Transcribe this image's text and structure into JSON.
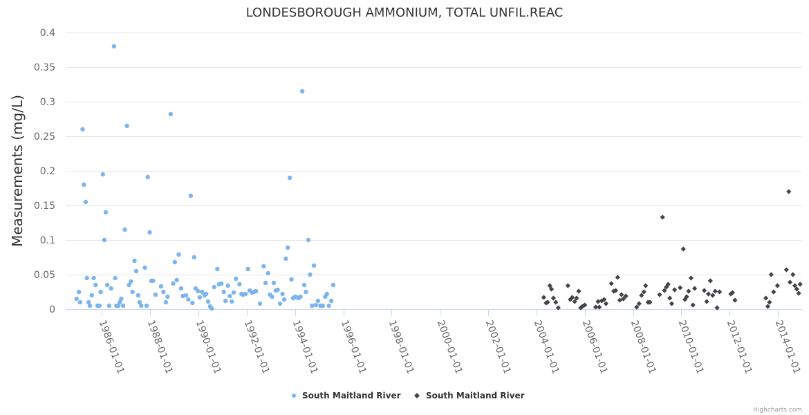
{
  "credits": "Highcharts.com",
  "chart_data": {
    "type": "scatter",
    "title": "LONDESBOROUGH AMMONIUM, TOTAL UNFIL.REAC",
    "xlabel": "",
    "ylabel": "Measurements (mg/L)",
    "ylim": [
      0,
      0.4
    ],
    "xlim": [
      1984.5,
      2015.0
    ],
    "yticks": [
      0,
      0.05,
      0.1,
      0.15,
      0.2,
      0.25,
      0.3,
      0.35,
      0.4
    ],
    "ytick_labels": [
      "0",
      "0.05",
      "0.1",
      "0.15",
      "0.2",
      "0.25",
      "0.3",
      "0.35",
      "0.4"
    ],
    "xticks": [
      1986,
      1988,
      1990,
      1992,
      1994,
      1996,
      1998,
      2000,
      2002,
      2004,
      2006,
      2008,
      2010,
      2012,
      2014
    ],
    "xtick_labels": [
      "1986-01-01",
      "1988-01-01",
      "1990-01-01",
      "1992-01-01",
      "1994-01-01",
      "1996-01-01",
      "1998-01-01",
      "2000-01-01",
      "2002-01-01",
      "2004-01-01",
      "2006-01-01",
      "2008-01-01",
      "2010-01-01",
      "2012-01-01",
      "2014-01-01"
    ],
    "grid": true,
    "legend_position": "bottom-center",
    "series": [
      {
        "name": "South Maitland River",
        "color": "#7cb5ec",
        "marker": "circle",
        "points": [
          [
            1984.95,
            0.015
          ],
          [
            1985.05,
            0.025
          ],
          [
            1985.1,
            0.01
          ],
          [
            1985.2,
            0.26
          ],
          [
            1985.25,
            0.18
          ],
          [
            1985.33,
            0.155
          ],
          [
            1985.38,
            0.045
          ],
          [
            1985.45,
            0.01
          ],
          [
            1985.5,
            0.005
          ],
          [
            1985.58,
            0.02
          ],
          [
            1985.66,
            0.045
          ],
          [
            1985.74,
            0.035
          ],
          [
            1985.82,
            0.005
          ],
          [
            1985.9,
            0.005
          ],
          [
            1985.95,
            0.025
          ],
          [
            1986.04,
            0.195
          ],
          [
            1986.1,
            0.1
          ],
          [
            1986.16,
            0.14
          ],
          [
            1986.22,
            0.035
          ],
          [
            1986.3,
            0.005
          ],
          [
            1986.38,
            0.03
          ],
          [
            1986.5,
            0.38
          ],
          [
            1986.55,
            0.045
          ],
          [
            1986.6,
            0.005
          ],
          [
            1986.68,
            0.005
          ],
          [
            1986.74,
            0.01
          ],
          [
            1986.8,
            0.015
          ],
          [
            1986.88,
            0.005
          ],
          [
            1986.95,
            0.115
          ],
          [
            1987.04,
            0.265
          ],
          [
            1987.12,
            0.035
          ],
          [
            1987.2,
            0.04
          ],
          [
            1987.27,
            0.025
          ],
          [
            1987.35,
            0.07
          ],
          [
            1987.42,
            0.055
          ],
          [
            1987.5,
            0.02
          ],
          [
            1987.56,
            0.01
          ],
          [
            1987.63,
            0.005
          ],
          [
            1987.78,
            0.06
          ],
          [
            1987.85,
            0.005
          ],
          [
            1987.9,
            0.191
          ],
          [
            1987.98,
            0.111
          ],
          [
            1988.05,
            0.041
          ],
          [
            1988.12,
            0.041
          ],
          [
            1988.22,
            0.021
          ],
          [
            1988.45,
            0.033
          ],
          [
            1988.55,
            0.025
          ],
          [
            1988.65,
            0.01
          ],
          [
            1988.72,
            0.018
          ],
          [
            1988.85,
            0.282
          ],
          [
            1988.95,
            0.037
          ],
          [
            1989.02,
            0.068
          ],
          [
            1989.1,
            0.042
          ],
          [
            1989.18,
            0.079
          ],
          [
            1989.28,
            0.03
          ],
          [
            1989.35,
            0.019
          ],
          [
            1989.48,
            0.02
          ],
          [
            1989.58,
            0.014
          ],
          [
            1989.68,
            0.164
          ],
          [
            1989.75,
            0.009
          ],
          [
            1989.82,
            0.075
          ],
          [
            1989.88,
            0.03
          ],
          [
            1989.98,
            0.026
          ],
          [
            1990.05,
            0.017
          ],
          [
            1990.15,
            0.025
          ],
          [
            1990.25,
            0.02
          ],
          [
            1990.32,
            0.022
          ],
          [
            1990.4,
            0.011
          ],
          [
            1990.48,
            0.004
          ],
          [
            1990.55,
            0.001
          ],
          [
            1990.65,
            0.032
          ],
          [
            1990.78,
            0.058
          ],
          [
            1990.85,
            0.036
          ],
          [
            1990.95,
            0.037
          ],
          [
            1991.05,
            0.025
          ],
          [
            1991.12,
            0.012
          ],
          [
            1991.22,
            0.034
          ],
          [
            1991.3,
            0.019
          ],
          [
            1991.38,
            0.011
          ],
          [
            1991.46,
            0.024
          ],
          [
            1991.55,
            0.044
          ],
          [
            1991.7,
            0.036
          ],
          [
            1991.78,
            0.022
          ],
          [
            1991.85,
            0.021
          ],
          [
            1991.95,
            0.022
          ],
          [
            1992.05,
            0.058
          ],
          [
            1992.12,
            0.027
          ],
          [
            1992.22,
            0.024
          ],
          [
            1992.3,
            0.025
          ],
          [
            1992.38,
            0.026
          ],
          [
            1992.55,
            0.008
          ],
          [
            1992.7,
            0.062
          ],
          [
            1992.78,
            0.038
          ],
          [
            1992.88,
            0.052
          ],
          [
            1992.96,
            0.021
          ],
          [
            1993.05,
            0.018
          ],
          [
            1993.12,
            0.038
          ],
          [
            1993.2,
            0.027
          ],
          [
            1993.28,
            0.028
          ],
          [
            1993.38,
            0.008
          ],
          [
            1993.48,
            0.022
          ],
          [
            1993.55,
            0.014
          ],
          [
            1993.62,
            0.073
          ],
          [
            1993.7,
            0.089
          ],
          [
            1993.78,
            0.19
          ],
          [
            1993.85,
            0.043
          ],
          [
            1993.92,
            0.016
          ],
          [
            1994.0,
            0.018
          ],
          [
            1994.08,
            0.017
          ],
          [
            1994.15,
            0.016
          ],
          [
            1994.22,
            0.018
          ],
          [
            1994.3,
            0.315
          ],
          [
            1994.38,
            0.035
          ],
          [
            1994.45,
            0.025
          ],
          [
            1994.55,
            0.1
          ],
          [
            1994.62,
            0.05
          ],
          [
            1994.7,
            0.005
          ],
          [
            1994.78,
            0.063
          ],
          [
            1994.86,
            0.006
          ],
          [
            1994.95,
            0.012
          ],
          [
            1995.05,
            0.005
          ],
          [
            1995.15,
            0.005
          ],
          [
            1995.25,
            0.018
          ],
          [
            1995.32,
            0.022
          ],
          [
            1995.4,
            0.005
          ],
          [
            1995.5,
            0.012
          ],
          [
            1995.58,
            0.035
          ]
        ]
      },
      {
        "name": "South Maitland River",
        "color": "#434348",
        "marker": "diamond",
        "points": [
          [
            2004.3,
            0.017
          ],
          [
            2004.4,
            0.009
          ],
          [
            2004.46,
            0.01
          ],
          [
            2004.55,
            0.034
          ],
          [
            2004.62,
            0.029
          ],
          [
            2004.7,
            0.016
          ],
          [
            2004.8,
            0.01
          ],
          [
            2004.9,
            0.002
          ],
          [
            2005.3,
            0.034
          ],
          [
            2005.4,
            0.014
          ],
          [
            2005.48,
            0.017
          ],
          [
            2005.58,
            0.011
          ],
          [
            2005.66,
            0.016
          ],
          [
            2005.75,
            0.026
          ],
          [
            2005.83,
            0.002
          ],
          [
            2005.9,
            0.004
          ],
          [
            2006.0,
            0.006
          ],
          [
            2006.45,
            0.003
          ],
          [
            2006.55,
            0.011
          ],
          [
            2006.6,
            0.003
          ],
          [
            2006.7,
            0.012
          ],
          [
            2006.8,
            0.014
          ],
          [
            2006.88,
            0.008
          ],
          [
            2007.1,
            0.037
          ],
          [
            2007.2,
            0.026
          ],
          [
            2007.28,
            0.027
          ],
          [
            2007.36,
            0.046
          ],
          [
            2007.45,
            0.013
          ],
          [
            2007.52,
            0.021
          ],
          [
            2007.6,
            0.015
          ],
          [
            2007.7,
            0.019
          ],
          [
            2008.15,
            0.003
          ],
          [
            2008.25,
            0.008
          ],
          [
            2008.35,
            0.02
          ],
          [
            2008.45,
            0.025
          ],
          [
            2008.52,
            0.034
          ],
          [
            2008.62,
            0.01
          ],
          [
            2008.7,
            0.01
          ],
          [
            2009.1,
            0.021
          ],
          [
            2009.22,
            0.133
          ],
          [
            2009.3,
            0.027
          ],
          [
            2009.38,
            0.032
          ],
          [
            2009.45,
            0.036
          ],
          [
            2009.52,
            0.016
          ],
          [
            2009.6,
            0.008
          ],
          [
            2009.72,
            0.028
          ],
          [
            2009.95,
            0.031
          ],
          [
            2010.08,
            0.087
          ],
          [
            2010.15,
            0.014
          ],
          [
            2010.22,
            0.018
          ],
          [
            2010.3,
            0.026
          ],
          [
            2010.4,
            0.045
          ],
          [
            2010.48,
            0.006
          ],
          [
            2010.55,
            0.03
          ],
          [
            2010.95,
            0.027
          ],
          [
            2011.05,
            0.011
          ],
          [
            2011.12,
            0.022
          ],
          [
            2011.2,
            0.041
          ],
          [
            2011.3,
            0.02
          ],
          [
            2011.4,
            0.026
          ],
          [
            2011.48,
            0.002
          ],
          [
            2011.58,
            0.025
          ],
          [
            2012.05,
            0.022
          ],
          [
            2012.12,
            0.024
          ],
          [
            2012.22,
            0.013
          ],
          [
            2013.5,
            0.016
          ],
          [
            2013.58,
            0.004
          ],
          [
            2013.65,
            0.01
          ],
          [
            2013.72,
            0.05
          ],
          [
            2013.82,
            0.025
          ],
          [
            2013.98,
            0.034
          ],
          [
            2014.35,
            0.057
          ],
          [
            2014.45,
            0.17
          ],
          [
            2014.5,
            0.039
          ],
          [
            2014.62,
            0.05
          ],
          [
            2014.7,
            0.034
          ],
          [
            2014.78,
            0.029
          ],
          [
            2014.86,
            0.023
          ],
          [
            2014.92,
            0.036
          ]
        ]
      }
    ]
  }
}
